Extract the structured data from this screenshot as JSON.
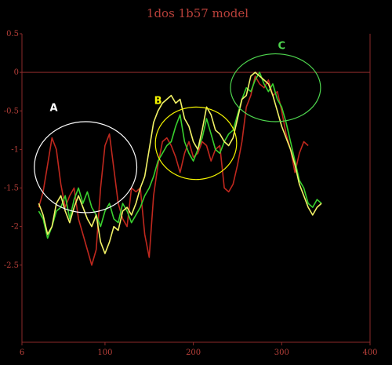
{
  "chart_data": {
    "type": "line",
    "title": "1dos 1b57 model",
    "xlim": [
      6,
      400
    ],
    "ylim": [
      -3.5,
      0.5
    ],
    "x_ticks": [
      "6",
      "100",
      "200",
      "300",
      "400"
    ],
    "x_tick_values": [
      6,
      100,
      200,
      300,
      400
    ],
    "y_ticks": [
      "0.5",
      "0",
      "-0.5",
      "-1",
      "-1.5",
      "-2",
      "-2.5"
    ],
    "y_tick_values": [
      0.5,
      0,
      -0.5,
      -1,
      -1.5,
      -2,
      -2.5
    ],
    "reference_line_y": 0,
    "colors": {
      "axis": "#8b2a2a",
      "red_series": "#c0281e",
      "green_series": "#39d12e",
      "yellow_series": "#f2f266",
      "background": "#000000"
    },
    "series": [
      {
        "color": "#c0281e",
        "x": [
          25,
          30,
          35,
          40,
          45,
          50,
          55,
          60,
          65,
          70,
          75,
          80,
          85,
          90,
          95,
          100,
          105,
          110,
          115,
          120,
          125,
          130,
          135,
          140,
          145,
          150,
          155,
          160,
          165,
          170,
          175,
          180,
          185,
          190,
          195,
          200,
          205,
          210,
          215,
          220,
          225,
          230,
          235,
          240,
          245,
          250,
          255,
          260,
          265,
          270,
          275,
          280,
          285,
          290,
          295,
          300,
          305,
          310,
          315,
          320,
          325,
          330
        ],
        "values": [
          -1.75,
          -1.55,
          -1.2,
          -0.85,
          -1.0,
          -1.45,
          -1.75,
          -1.6,
          -1.5,
          -1.9,
          -2.1,
          -2.3,
          -2.5,
          -2.3,
          -1.5,
          -0.95,
          -0.8,
          -1.25,
          -1.7,
          -1.9,
          -2.0,
          -1.5,
          -1.55,
          -1.5,
          -2.1,
          -2.4,
          -1.6,
          -1.2,
          -0.9,
          -0.85,
          -0.95,
          -1.1,
          -1.3,
          -1.05,
          -0.9,
          -1.1,
          -1.05,
          -0.9,
          -0.95,
          -1.15,
          -1.0,
          -0.95,
          -1.5,
          -1.55,
          -1.45,
          -1.2,
          -0.9,
          -0.45,
          -0.3,
          -0.05,
          -0.15,
          -0.2,
          -0.1,
          -0.3,
          -0.25,
          -0.5,
          -0.8,
          -1.0,
          -1.3,
          -1.05,
          -0.9,
          -0.95
        ]
      },
      {
        "color": "#39d12e",
        "x": [
          25,
          30,
          35,
          40,
          45,
          50,
          55,
          60,
          65,
          70,
          75,
          80,
          85,
          90,
          95,
          100,
          105,
          110,
          115,
          120,
          125,
          130,
          135,
          140,
          145,
          150,
          155,
          160,
          165,
          170,
          175,
          180,
          185,
          190,
          195,
          200,
          205,
          210,
          215,
          220,
          225,
          230,
          235,
          240,
          245,
          250,
          255,
          260,
          265,
          270,
          275,
          280,
          285,
          290,
          295,
          300,
          305,
          310,
          315,
          320,
          325,
          330,
          335,
          340,
          345
        ],
        "values": [
          -1.8,
          -1.9,
          -2.15,
          -2.0,
          -1.8,
          -1.75,
          -1.6,
          -1.9,
          -1.65,
          -1.5,
          -1.7,
          -1.55,
          -1.75,
          -1.85,
          -2.0,
          -1.8,
          -1.7,
          -1.9,
          -1.95,
          -1.7,
          -1.8,
          -1.95,
          -1.85,
          -1.75,
          -1.6,
          -1.5,
          -1.35,
          -1.15,
          -1.05,
          -0.95,
          -0.9,
          -0.7,
          -0.55,
          -0.9,
          -1.05,
          -1.15,
          -1.0,
          -0.85,
          -0.6,
          -0.8,
          -1.0,
          -1.05,
          -0.9,
          -0.8,
          -0.75,
          -0.55,
          -0.35,
          -0.2,
          -0.25,
          -0.1,
          0.0,
          -0.15,
          -0.25,
          -0.15,
          -0.35,
          -0.45,
          -0.65,
          -0.9,
          -1.15,
          -1.4,
          -1.5,
          -1.7,
          -1.75,
          -1.65,
          -1.7
        ]
      },
      {
        "color": "#f2f266",
        "x": [
          25,
          30,
          35,
          40,
          45,
          50,
          55,
          60,
          65,
          70,
          75,
          80,
          85,
          90,
          95,
          100,
          105,
          110,
          115,
          120,
          125,
          130,
          135,
          140,
          145,
          150,
          155,
          160,
          165,
          170,
          175,
          180,
          185,
          190,
          195,
          200,
          205,
          210,
          215,
          220,
          225,
          230,
          235,
          240,
          245,
          250,
          255,
          260,
          265,
          270,
          275,
          280,
          285,
          290,
          295,
          300,
          305,
          310,
          315,
          320,
          325,
          330,
          335,
          340,
          345
        ],
        "values": [
          -1.7,
          -1.85,
          -2.1,
          -2.0,
          -1.7,
          -1.6,
          -1.8,
          -1.95,
          -1.75,
          -1.6,
          -1.75,
          -1.9,
          -2.0,
          -1.85,
          -2.2,
          -2.35,
          -2.2,
          -2.0,
          -2.05,
          -1.8,
          -1.75,
          -1.85,
          -1.7,
          -1.5,
          -1.35,
          -1.0,
          -0.65,
          -0.5,
          -0.4,
          -0.35,
          -0.3,
          -0.4,
          -0.35,
          -0.6,
          -0.7,
          -0.9,
          -1.0,
          -0.75,
          -0.45,
          -0.55,
          -0.75,
          -0.8,
          -0.9,
          -0.95,
          -0.85,
          -0.6,
          -0.35,
          -0.3,
          -0.05,
          0.0,
          -0.05,
          -0.1,
          -0.15,
          -0.3,
          -0.5,
          -0.7,
          -0.85,
          -1.0,
          -1.2,
          -1.45,
          -1.6,
          -1.75,
          -1.85,
          -1.75,
          -1.7
        ]
      }
    ],
    "annotations": [
      {
        "label": "A",
        "color": "#ffffff",
        "circle_center": [
          78,
          -1.23
        ],
        "circle_rx": 58,
        "circle_ry": -0.59,
        "label_pos": [
          42,
          -0.5
        ]
      },
      {
        "label": "B",
        "color": "#f5f500",
        "circle_center": [
          203,
          -0.92
        ],
        "circle_rx": 46,
        "circle_ry": -0.47,
        "label_pos": [
          160,
          -0.41
        ]
      },
      {
        "label": "C",
        "color": "#4ed64e",
        "circle_center": [
          293,
          -0.2
        ],
        "circle_rx": 51,
        "circle_ry": -0.44,
        "label_pos": [
          300,
          0.3
        ]
      }
    ]
  }
}
